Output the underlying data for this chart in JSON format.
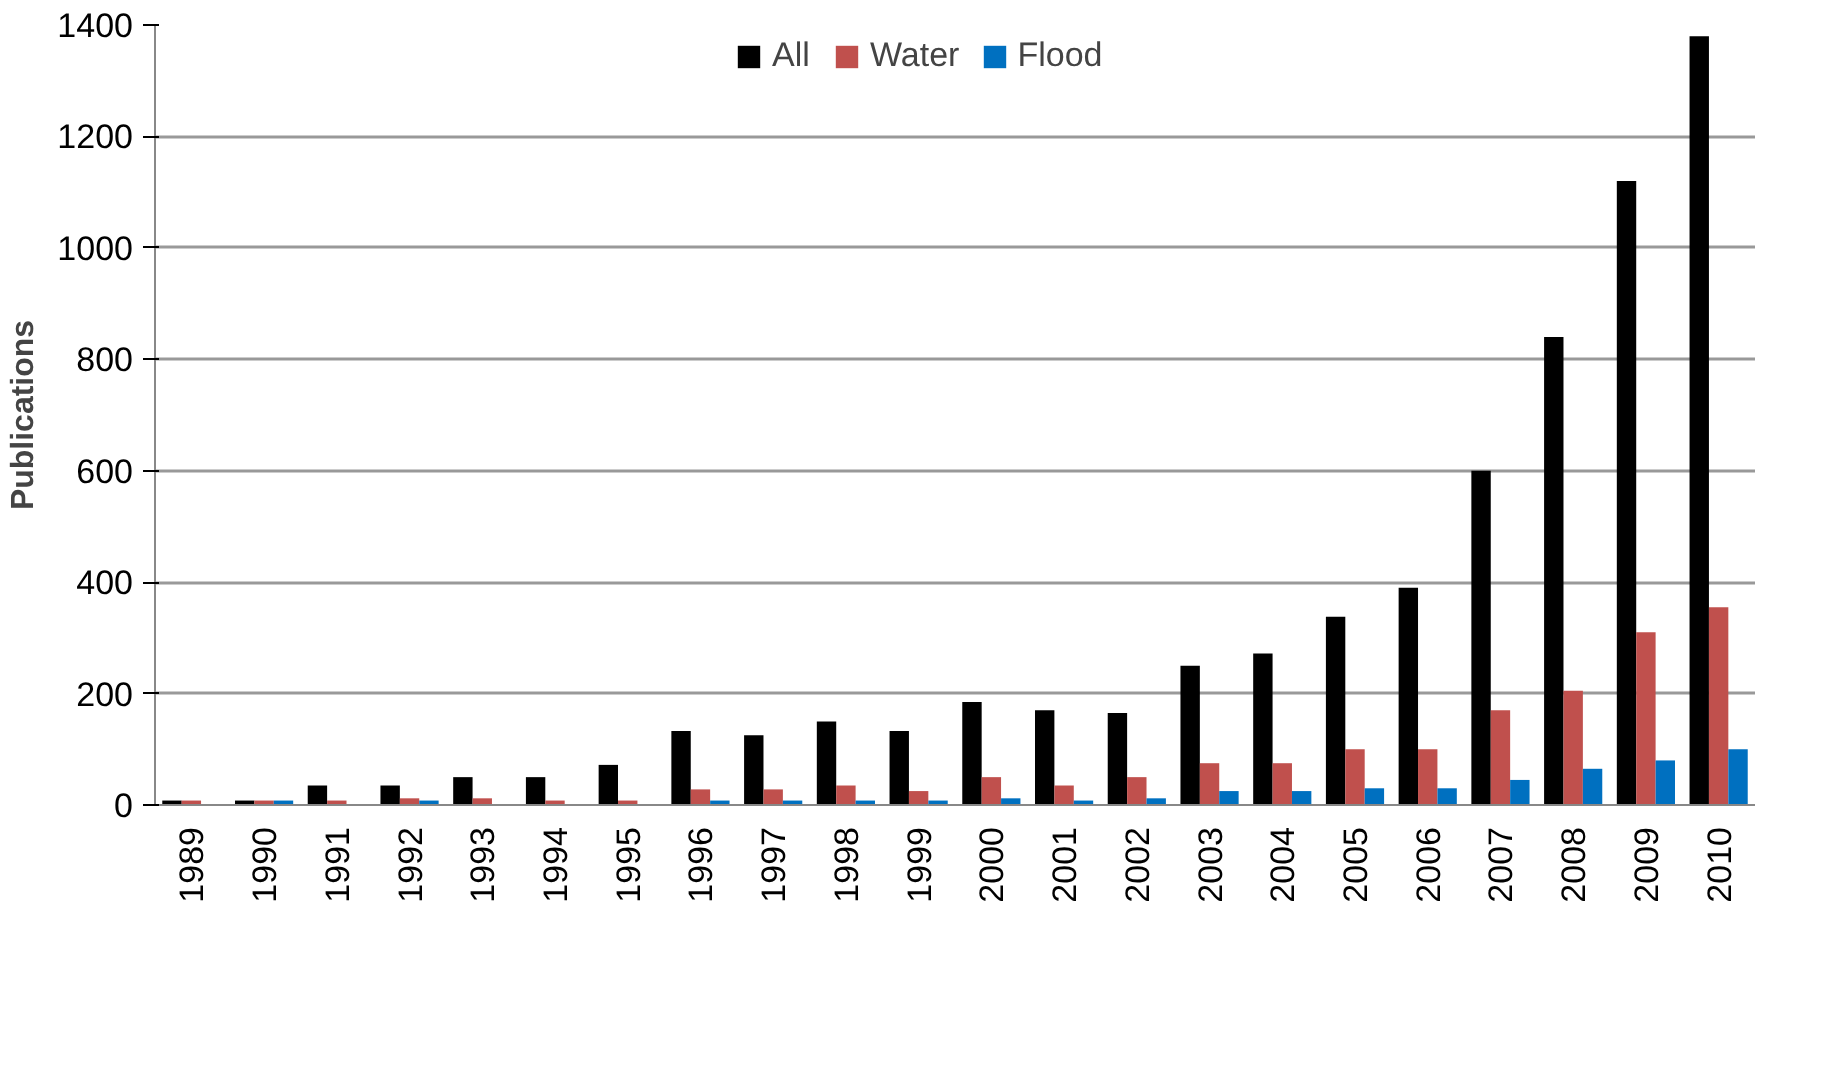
{
  "chart_data": {
    "type": "bar",
    "ylabel": "Publications",
    "categories": [
      "1989",
      "1990",
      "1991",
      "1992",
      "1993",
      "1994",
      "1995",
      "1996",
      "1997",
      "1998",
      "1999",
      "2000",
      "2001",
      "2002",
      "2003",
      "2004",
      "2005",
      "2006",
      "2007",
      "2008",
      "2009",
      "2010"
    ],
    "series": [
      {
        "name": "All",
        "color": "#000000",
        "values": [
          8,
          8,
          35,
          35,
          50,
          50,
          72,
          133,
          125,
          150,
          133,
          185,
          170,
          165,
          250,
          272,
          338,
          390,
          600,
          840,
          1120,
          1380
        ]
      },
      {
        "name": "Water",
        "color": "#c0504d",
        "values": [
          8,
          8,
          8,
          12,
          12,
          8,
          8,
          28,
          28,
          35,
          25,
          50,
          35,
          50,
          75,
          75,
          100,
          100,
          170,
          205,
          310,
          355
        ]
      },
      {
        "name": "Flood",
        "color": "#0070c0",
        "values": [
          null,
          8,
          null,
          8,
          null,
          null,
          null,
          8,
          8,
          8,
          8,
          12,
          8,
          12,
          25,
          25,
          30,
          30,
          45,
          65,
          80,
          100
        ]
      }
    ],
    "ylim": [
      0,
      1400
    ],
    "yticks": [
      0,
      200,
      400,
      600,
      800,
      1000,
      1200,
      1400
    ],
    "grid": "y",
    "legend": "top"
  }
}
